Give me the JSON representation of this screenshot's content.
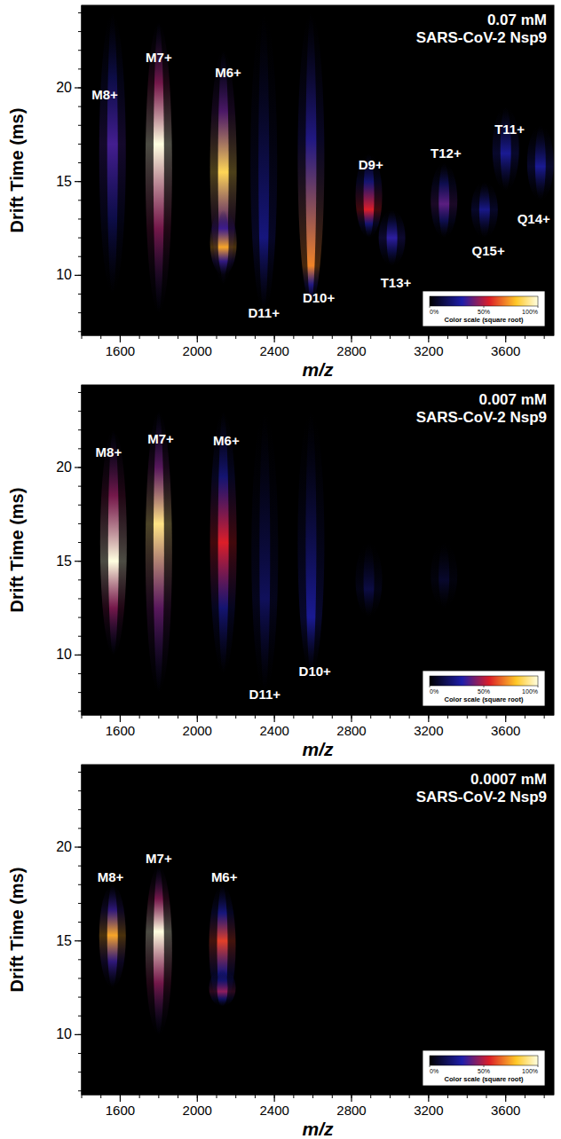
{
  "chart_data": [
    {
      "type": "heatmap",
      "title": "0.07 mM",
      "subtitle": "SARS-CoV-2 Nsp9",
      "x_label": "m/z",
      "y_label": "Drift Time (ms)",
      "xlim": [
        1400,
        3850
      ],
      "ylim": [
        6.8,
        24.4
      ],
      "xticks": [
        1600,
        2000,
        2400,
        2800,
        3200,
        3600
      ],
      "yticks": [
        10,
        15,
        20
      ],
      "peaks": [
        {
          "mz": 1560,
          "dt_min": 9,
          "dt_apex": 17,
          "dt_max": 24,
          "intensity": 35
        },
        {
          "mz": 1800,
          "dt_min": 8,
          "dt_apex": 17,
          "dt_max": 23.5,
          "intensity": 100
        },
        {
          "mz": 2135,
          "dt_min": 9.5,
          "dt_apex": 15.5,
          "dt_max": 22,
          "intensity": 85
        },
        {
          "mz": 2135,
          "dt_min": 10,
          "dt_apex": 11.5,
          "dt_max": 13.5,
          "intensity": 75
        },
        {
          "mz": 2345,
          "dt_min": 8,
          "dt_apex": 12,
          "dt_max": 24,
          "intensity": 22
        },
        {
          "mz": 2590,
          "dt_min": 8.5,
          "dt_apex": 10.5,
          "dt_max": 24,
          "intensity": 70
        },
        {
          "mz": 2890,
          "dt_min": 12,
          "dt_apex": 13.5,
          "dt_max": 16.5,
          "intensity": 55
        },
        {
          "mz": 3010,
          "dt_min": 10.5,
          "dt_apex": 12,
          "dt_max": 13.5,
          "intensity": 32
        },
        {
          "mz": 3280,
          "dt_min": 12,
          "dt_apex": 13.8,
          "dt_max": 16,
          "intensity": 38
        },
        {
          "mz": 3490,
          "dt_min": 12,
          "dt_apex": 13.5,
          "dt_max": 15,
          "intensity": 24
        },
        {
          "mz": 3600,
          "dt_min": 14.5,
          "dt_apex": 16.5,
          "dt_max": 19,
          "intensity": 26
        },
        {
          "mz": 3780,
          "dt_min": 14,
          "dt_apex": 15.8,
          "dt_max": 18,
          "intensity": 26
        }
      ],
      "labels": [
        {
          "text": "M8+",
          "mz": 1520,
          "dt": 19.6
        },
        {
          "text": "M7+",
          "mz": 1800,
          "dt": 21.6
        },
        {
          "text": "M6+",
          "mz": 2160,
          "dt": 20.8
        },
        {
          "text": "D11+",
          "mz": 2345,
          "dt": 8.0
        },
        {
          "text": "D10+",
          "mz": 2630,
          "dt": 8.8
        },
        {
          "text": "D9+",
          "mz": 2900,
          "dt": 15.9
        },
        {
          "text": "T13+",
          "mz": 3030,
          "dt": 9.6
        },
        {
          "text": "T12+",
          "mz": 3290,
          "dt": 16.5
        },
        {
          "text": "Q15+",
          "mz": 3510,
          "dt": 11.3
        },
        {
          "text": "T11+",
          "mz": 3620,
          "dt": 17.8
        },
        {
          "text": "Q14+",
          "mz": 3745,
          "dt": 13.0
        }
      ],
      "color_bar": {
        "range": [
          0,
          100
        ],
        "label": "Color scale (square root)",
        "ticks": [
          {
            "value": 0,
            "label": "0%"
          },
          {
            "value": 50,
            "label": "50%"
          },
          {
            "value": 100,
            "label": "100%"
          }
        ]
      }
    },
    {
      "type": "heatmap",
      "title": "0.007 mM",
      "subtitle": "SARS-CoV-2 Nsp9",
      "x_label": "m/z",
      "y_label": "Drift Time (ms)",
      "xlim": [
        1400,
        3850
      ],
      "ylim": [
        6.8,
        24.4
      ],
      "xticks": [
        1600,
        2000,
        2400,
        2800,
        3200,
        3600
      ],
      "yticks": [
        10,
        15,
        20
      ],
      "peaks": [
        {
          "mz": 1565,
          "dt_min": 10,
          "dt_apex": 15,
          "dt_max": 22,
          "intensity": 100
        },
        {
          "mz": 1800,
          "dt_min": 8,
          "dt_apex": 17,
          "dt_max": 23,
          "intensity": 90
        },
        {
          "mz": 2135,
          "dt_min": 9,
          "dt_apex": 16,
          "dt_max": 23,
          "intensity": 55
        },
        {
          "mz": 2350,
          "dt_min": 8,
          "dt_apex": 13,
          "dt_max": 23,
          "intensity": 16
        },
        {
          "mz": 2590,
          "dt_min": 9,
          "dt_apex": 12,
          "dt_max": 23,
          "intensity": 26
        },
        {
          "mz": 2890,
          "dt_min": 12,
          "dt_apex": 13.5,
          "dt_max": 16,
          "intensity": 12
        },
        {
          "mz": 3280,
          "dt_min": 12.5,
          "dt_apex": 14,
          "dt_max": 16,
          "intensity": 8
        }
      ],
      "labels": [
        {
          "text": "M8+",
          "mz": 1540,
          "dt": 20.8
        },
        {
          "text": "M7+",
          "mz": 1810,
          "dt": 21.5
        },
        {
          "text": "M6+",
          "mz": 2150,
          "dt": 21.4
        },
        {
          "text": "D11+",
          "mz": 2350,
          "dt": 7.9
        },
        {
          "text": "D10+",
          "mz": 2610,
          "dt": 9.1
        }
      ],
      "color_bar": {
        "range": [
          0,
          100
        ],
        "label": "Color scale (square root)",
        "ticks": [
          {
            "value": 0,
            "label": "0%"
          },
          {
            "value": 50,
            "label": "50%"
          },
          {
            "value": 100,
            "label": "100%"
          }
        ]
      }
    },
    {
      "type": "heatmap",
      "title": "0.0007 mM",
      "subtitle": "SARS-CoV-2 Nsp9",
      "x_label": "m/z",
      "y_label": "Drift Time (ms)",
      "xlim": [
        1400,
        3850
      ],
      "ylim": [
        6.8,
        24.4
      ],
      "xticks": [
        1600,
        2000,
        2400,
        2800,
        3200,
        3600
      ],
      "yticks": [
        10,
        15,
        20
      ],
      "peaks": [
        {
          "mz": 1560,
          "dt_min": 12.5,
          "dt_apex": 15.3,
          "dt_max": 18,
          "intensity": 75
        },
        {
          "mz": 1800,
          "dt_min": 10,
          "dt_apex": 15.5,
          "dt_max": 19,
          "intensity": 100
        },
        {
          "mz": 2130,
          "dt_min": 11.5,
          "dt_apex": 15,
          "dt_max": 18,
          "intensity": 60
        },
        {
          "mz": 2130,
          "dt_min": 11.5,
          "dt_apex": 12.3,
          "dt_max": 13.5,
          "intensity": 45
        }
      ],
      "labels": [
        {
          "text": "M8+",
          "mz": 1550,
          "dt": 18.4
        },
        {
          "text": "M7+",
          "mz": 1800,
          "dt": 19.4
        },
        {
          "text": "M6+",
          "mz": 2140,
          "dt": 18.4
        }
      ],
      "color_bar": {
        "range": [
          0,
          100
        ],
        "label": "Color scale (square root)",
        "ticks": [
          {
            "value": 0,
            "label": "0%"
          },
          {
            "value": 50,
            "label": "50%"
          },
          {
            "value": 100,
            "label": "100%"
          }
        ]
      }
    }
  ]
}
